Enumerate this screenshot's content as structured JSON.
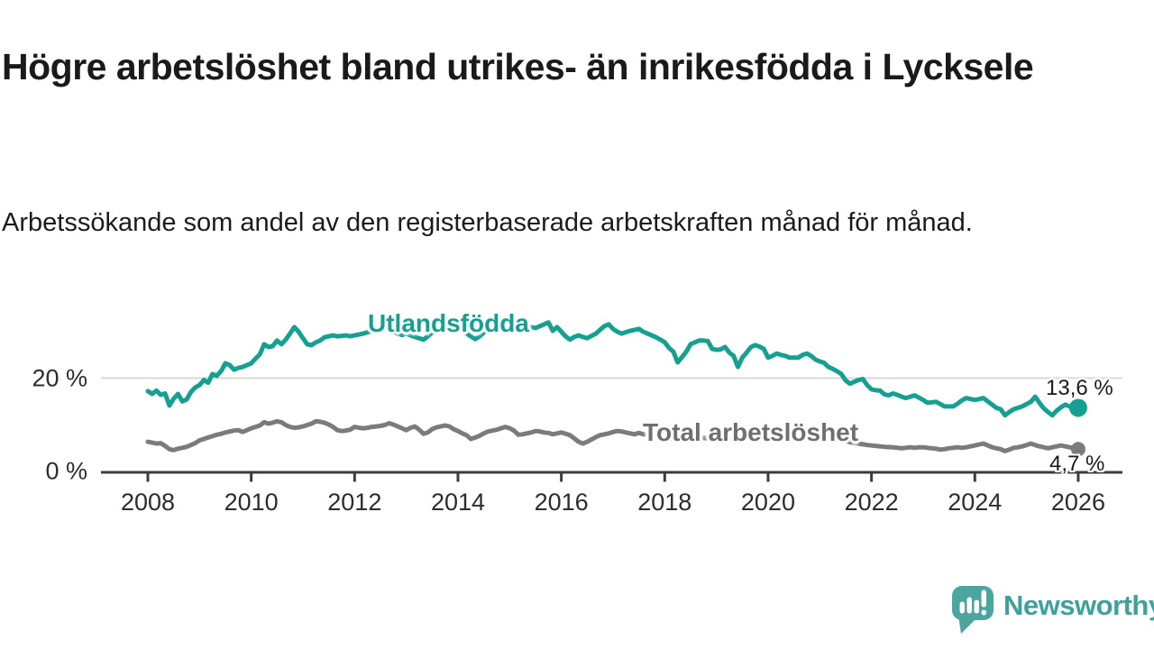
{
  "header": {
    "title": "Högre arbetslöshet bland utrikes- än inrikesfödda i Lycksele",
    "subtitle": "Arbetssökande som andel av den registerbaserade arbetskraften månad för månad."
  },
  "branding": {
    "logo_text": "Newsworthy",
    "logo_mark_color": "#4aa69f",
    "logo_text_color": "#3da29b"
  },
  "chart_data": {
    "type": "line",
    "title": "Högre arbetslöshet bland utrikes- än inrikesfödda i Lycksele",
    "xlabel": "",
    "ylabel": "Arbetssökande som andel av den registerbaserade arbetskraften",
    "unit": "%",
    "x_start_year": 2008,
    "x_end_year": 2026,
    "points_per_year": 12,
    "x_tick_years": [
      2008,
      2010,
      2012,
      2014,
      2016,
      2018,
      2020,
      2022,
      2024,
      2026
    ],
    "y_ticks": [
      {
        "value": 0,
        "label": "0 %"
      },
      {
        "value": 20,
        "label": "20 %"
      }
    ],
    "ylim": [
      0,
      34.5
    ],
    "grid": "horizontal-only",
    "legend_position": "inline-labels",
    "axis_color": "#3c3c3c",
    "grid_color": "#d8d8d8",
    "tick_label_color": "#2d2d2d",
    "series": [
      {
        "name": "Utlandsfödda",
        "color": "#15a091",
        "end_value": 13.6,
        "end_label": "13,6 %",
        "line_width": 5,
        "end_dot_radius": 10,
        "values": [
          17.2,
          16.6,
          17.3,
          16.4,
          16.7,
          14.1,
          15.6,
          16.6,
          15.0,
          15.4,
          17.0,
          18.0,
          18.5,
          19.6,
          19.0,
          20.9,
          20.5,
          21.5,
          23.2,
          22.8,
          21.8,
          22.2,
          22.4,
          22.8,
          23.2,
          24.2,
          25.1,
          27.3,
          26.7,
          26.9,
          28.1,
          27.3,
          28.3,
          29.6,
          31.0,
          30.0,
          28.6,
          27.3,
          27.1,
          27.7,
          28.1,
          28.8,
          29.0,
          29.2,
          29.0,
          29.1,
          29.2,
          29.0,
          29.2,
          29.4,
          29.6,
          29.9,
          30.1,
          30.5,
          30.8,
          31.0,
          30.5,
          30.0,
          29.6,
          29.3,
          29.6,
          29.2,
          28.9,
          28.6,
          28.3,
          29.0,
          29.8,
          30.5,
          31.2,
          31.6,
          31.9,
          31.5,
          31.0,
          30.3,
          29.6,
          29.0,
          28.4,
          29.0,
          29.8,
          30.6,
          31.2,
          31.7,
          32.0,
          31.6,
          31.2,
          30.8,
          30.4,
          30.8,
          31.2,
          31.0,
          30.8,
          31.2,
          31.6,
          32.0,
          30.2,
          31.0,
          30.0,
          29.0,
          28.3,
          28.9,
          29.2,
          28.9,
          28.6,
          29.1,
          29.6,
          30.4,
          31.2,
          31.6,
          30.6,
          30.0,
          29.6,
          29.9,
          30.2,
          30.4,
          30.6,
          30.0,
          29.6,
          29.2,
          28.8,
          28.3,
          27.7,
          26.5,
          25.7,
          23.4,
          24.5,
          25.7,
          27.3,
          27.7,
          28.1,
          28.1,
          28.0,
          26.3,
          26.1,
          26.2,
          26.7,
          25.5,
          24.8,
          22.4,
          24.4,
          25.5,
          26.7,
          27.1,
          26.8,
          26.3,
          24.4,
          24.8,
          25.3,
          25.0,
          24.8,
          24.4,
          24.4,
          24.4,
          25.0,
          25.3,
          24.8,
          24.0,
          23.6,
          23.3,
          22.4,
          22.0,
          21.5,
          20.9,
          19.5,
          18.8,
          19.2,
          19.6,
          19.8,
          18.5,
          17.6,
          17.4,
          17.3,
          16.5,
          16.3,
          16.7,
          16.4,
          16.0,
          15.7,
          16.0,
          16.3,
          15.8,
          15.3,
          14.7,
          14.8,
          14.9,
          14.4,
          13.9,
          13.9,
          13.9,
          14.5,
          15.2,
          15.7,
          15.5,
          15.3,
          15.5,
          15.7,
          15.0,
          14.3,
          13.6,
          13.3,
          12.0,
          12.7,
          13.3,
          13.6,
          13.9,
          14.4,
          14.9,
          16.0,
          14.7,
          13.5,
          12.7,
          12.0,
          13.0,
          13.7,
          14.3,
          13.9,
          13.3,
          13.6
        ]
      },
      {
        "name": "Total arbetslöshet",
        "color": "#7b7b7b",
        "end_value": 4.7,
        "end_label": "4,7 %",
        "line_width": 5,
        "end_dot_radius": 8,
        "values": [
          6.3,
          6.1,
          5.9,
          6.0,
          5.4,
          4.7,
          4.5,
          4.8,
          5.0,
          5.2,
          5.6,
          6.0,
          6.6,
          6.9,
          7.2,
          7.5,
          7.8,
          8.0,
          8.3,
          8.5,
          8.7,
          8.8,
          8.4,
          8.8,
          9.2,
          9.5,
          9.8,
          10.5,
          10.2,
          10.4,
          10.7,
          10.5,
          9.9,
          9.5,
          9.3,
          9.4,
          9.6,
          9.9,
          10.2,
          10.7,
          10.6,
          10.4,
          10.0,
          9.5,
          8.8,
          8.6,
          8.7,
          8.9,
          9.5,
          9.3,
          9.2,
          9.3,
          9.5,
          9.6,
          9.7,
          9.9,
          10.3,
          10.0,
          9.6,
          9.2,
          8.8,
          9.3,
          9.6,
          8.9,
          8.0,
          8.3,
          9.0,
          9.4,
          9.6,
          9.8,
          9.6,
          9.0,
          8.6,
          8.1,
          7.7,
          6.9,
          7.2,
          7.6,
          8.1,
          8.5,
          8.7,
          8.9,
          9.2,
          9.5,
          9.2,
          8.7,
          7.8,
          7.9,
          8.1,
          8.3,
          8.6,
          8.5,
          8.3,
          8.2,
          7.9,
          8.1,
          8.3,
          8.0,
          7.7,
          7.0,
          6.3,
          5.9,
          6.3,
          6.8,
          7.3,
          7.7,
          7.9,
          8.1,
          8.4,
          8.6,
          8.5,
          8.3,
          8.1,
          7.9,
          8.2,
          7.9,
          7.8,
          7.7,
          7.55,
          7.4,
          7.25,
          7.1,
          6.95,
          6.8,
          6.9,
          7.0,
          7.1,
          7.2,
          7.15,
          7.1,
          7.05,
          7.0,
          7.05,
          7.1,
          7.05,
          7.0,
          6.95,
          6.9,
          7.0,
          7.1,
          7.2,
          7.3,
          7.4,
          7.5,
          7.65,
          7.8,
          8.0,
          8.2,
          8.35,
          8.5,
          8.4,
          8.3,
          8.15,
          8.0,
          7.85,
          7.7,
          7.5,
          7.3,
          7.15,
          7.0,
          6.8,
          6.6,
          6.4,
          6.2,
          6.05,
          5.9,
          5.75,
          5.6,
          5.5,
          5.4,
          5.3,
          5.2,
          5.15,
          5.1,
          5.0,
          4.9,
          5.0,
          5.1,
          5.0,
          5.1,
          5.1,
          5.0,
          4.9,
          4.8,
          4.6,
          4.7,
          4.9,
          5.0,
          5.1,
          5.0,
          5.1,
          5.3,
          5.5,
          5.7,
          5.9,
          5.5,
          5.1,
          4.9,
          4.7,
          4.3,
          4.6,
          5.0,
          5.1,
          5.3,
          5.6,
          5.9,
          5.6,
          5.3,
          5.1,
          4.9,
          5.1,
          5.3,
          5.5,
          5.3,
          5.1,
          4.9,
          4.7
        ]
      }
    ]
  }
}
